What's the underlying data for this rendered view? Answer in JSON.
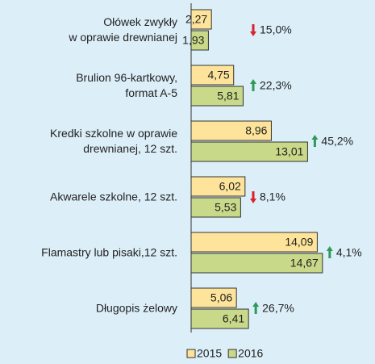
{
  "chart_data": {
    "type": "bar",
    "orientation": "horizontal",
    "categories": [
      "Ołówek zwykły\nw oprawie drewnianej",
      "Brulion 96-kartkowy,\nformat A-5",
      "Kredki szkolne w oprawie\ndrewnianej, 12 szt.",
      "Akwarele szkolne, 12 szt.",
      "Flamastry lub pisaki,12 szt.",
      "Długopis żelowy"
    ],
    "series": [
      {
        "name": "2015",
        "color": "#fde49a",
        "values": [
          2.27,
          4.75,
          8.96,
          6.02,
          14.09,
          5.06
        ],
        "value_labels": [
          "2,27",
          "4,75",
          "8,96",
          "6,02",
          "14,09",
          "5,06"
        ]
      },
      {
        "name": "2016",
        "color": "#c8d98a",
        "values": [
          1.93,
          5.81,
          13.01,
          5.53,
          14.67,
          6.41
        ],
        "value_labels": [
          "1,93",
          "5,81",
          "13,01",
          "5,53",
          "14,67",
          "6,41"
        ]
      }
    ],
    "annotations": [
      "15,0%",
      "22,3%",
      "45,2%",
      "8,1%",
      "4,1%",
      "26,7%"
    ],
    "annotation_directions": [
      "down",
      "up",
      "up",
      "down",
      "up",
      "up"
    ],
    "arrow_colors": {
      "up": "#2e9a5a",
      "down": "#d9232e"
    },
    "xlim": [
      0,
      20
    ]
  }
}
